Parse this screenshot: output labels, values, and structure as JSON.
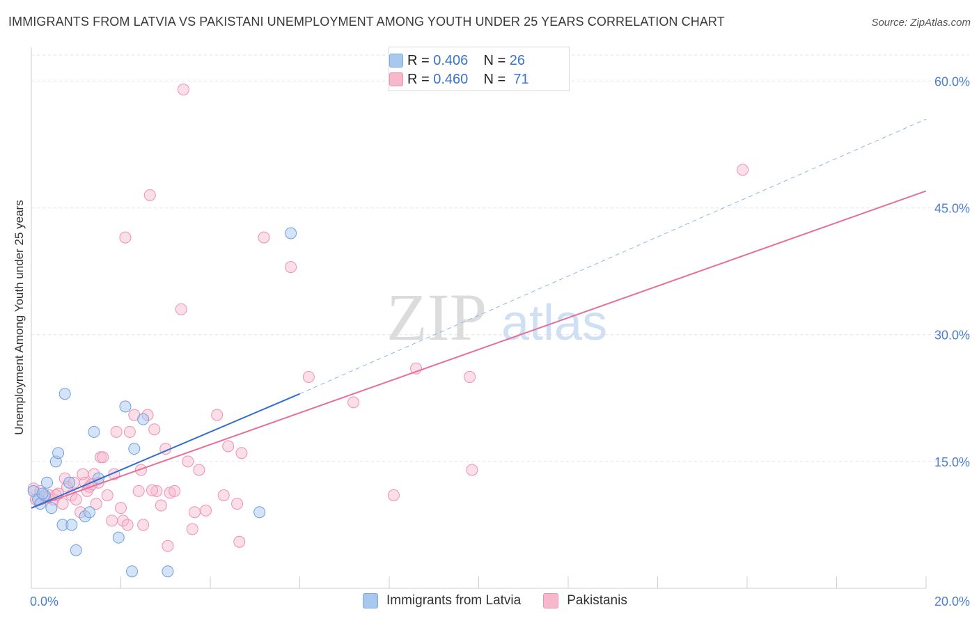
{
  "title": "IMMIGRANTS FROM LATVIA VS PAKISTANI UNEMPLOYMENT AMONG YOUTH UNDER 25 YEARS CORRELATION CHART",
  "source": "Source: ZipAtlas.com",
  "watermark": {
    "zip": "ZIP",
    "atlas": "atlas"
  },
  "legend_top": [
    {
      "r_label": "R =",
      "r_value": "0.406",
      "n_label": "N =",
      "n_value": "26",
      "color": "#a9c8ef"
    },
    {
      "r_label": "R =",
      "r_value": "0.460",
      "n_label": "N =",
      "n_value": "71",
      "color": "#f6b9cc"
    }
  ],
  "chart_data": {
    "type": "scatter",
    "title": "IMMIGRANTS FROM LATVIA VS PAKISTANI UNEMPLOYMENT AMONG YOUTH UNDER 25 YEARS CORRELATION CHART",
    "xlabel": "",
    "ylabel": "Unemployment Among Youth under 25 years",
    "xlim": [
      0,
      20
    ],
    "ylim": [
      0,
      63
    ],
    "x_tick_labels": [
      "0.0%",
      "20.0%"
    ],
    "y_ticks": [
      15,
      30,
      45,
      60
    ],
    "y_tick_labels": [
      "15.0%",
      "30.0%",
      "45.0%",
      "60.0%"
    ],
    "grid": true,
    "legend_position": "bottom",
    "series": [
      {
        "name": "Immigrants from Latvia",
        "color": "#7aaae6",
        "line_color": "#2f6fd1",
        "points": [
          [
            0.05,
            11.5
          ],
          [
            0.15,
            10.5
          ],
          [
            0.2,
            10.0
          ],
          [
            0.3,
            11.0
          ],
          [
            0.35,
            12.5
          ],
          [
            0.45,
            9.5
          ],
          [
            0.55,
            15.0
          ],
          [
            0.6,
            16.0
          ],
          [
            0.7,
            7.5
          ],
          [
            0.75,
            23.0
          ],
          [
            0.85,
            12.5
          ],
          [
            0.9,
            7.5
          ],
          [
            1.0,
            4.5
          ],
          [
            1.2,
            8.5
          ],
          [
            1.3,
            9.0
          ],
          [
            1.4,
            18.5
          ],
          [
            1.5,
            13.0
          ],
          [
            1.95,
            6.0
          ],
          [
            2.1,
            21.5
          ],
          [
            2.25,
            2.0
          ],
          [
            2.3,
            16.5
          ],
          [
            2.5,
            20.0
          ],
          [
            3.05,
            2.0
          ],
          [
            5.1,
            9.0
          ],
          [
            5.8,
            42.0
          ],
          [
            0.25,
            11.2
          ]
        ],
        "trend": {
          "x0": 0,
          "y0": 9.5,
          "x1": 6.0,
          "y1": 23.0,
          "dashed_to_x": 20.0,
          "dashed_to_y": 55.5
        }
      },
      {
        "name": "Pakistanis",
        "color": "#f4a6bf",
        "line_color": "#e46f9a",
        "points": [
          [
            0.05,
            11.8
          ],
          [
            0.1,
            10.5
          ],
          [
            0.2,
            11.5
          ],
          [
            0.3,
            10.8
          ],
          [
            0.4,
            11.0
          ],
          [
            0.5,
            10.5
          ],
          [
            0.6,
            11.2
          ],
          [
            0.7,
            10.0
          ],
          [
            0.75,
            13.0
          ],
          [
            0.8,
            12.0
          ],
          [
            0.9,
            11.0
          ],
          [
            0.95,
            12.5
          ],
          [
            1.0,
            10.5
          ],
          [
            1.1,
            9.0
          ],
          [
            1.15,
            13.5
          ],
          [
            1.2,
            12.5
          ],
          [
            1.25,
            11.5
          ],
          [
            1.3,
            12.0
          ],
          [
            1.4,
            13.5
          ],
          [
            1.45,
            10.0
          ],
          [
            1.5,
            12.5
          ],
          [
            1.55,
            15.5
          ],
          [
            1.6,
            15.5
          ],
          [
            1.7,
            11.0
          ],
          [
            1.8,
            8.0
          ],
          [
            1.85,
            13.5
          ],
          [
            1.9,
            18.5
          ],
          [
            2.0,
            9.5
          ],
          [
            2.05,
            8.0
          ],
          [
            2.1,
            41.5
          ],
          [
            2.15,
            7.5
          ],
          [
            2.2,
            18.5
          ],
          [
            2.3,
            20.5
          ],
          [
            2.4,
            11.5
          ],
          [
            2.45,
            14.0
          ],
          [
            2.5,
            7.5
          ],
          [
            2.6,
            20.5
          ],
          [
            2.65,
            46.5
          ],
          [
            2.75,
            18.8
          ],
          [
            2.8,
            11.5
          ],
          [
            2.9,
            9.8
          ],
          [
            3.0,
            16.5
          ],
          [
            3.05,
            5.0
          ],
          [
            3.1,
            11.3
          ],
          [
            3.2,
            11.5
          ],
          [
            3.35,
            33.0
          ],
          [
            3.4,
            59.0
          ],
          [
            3.5,
            15.0
          ],
          [
            3.6,
            7.0
          ],
          [
            3.65,
            9.0
          ],
          [
            3.75,
            14.0
          ],
          [
            3.9,
            9.2
          ],
          [
            4.15,
            20.5
          ],
          [
            4.3,
            11.0
          ],
          [
            4.4,
            16.8
          ],
          [
            4.6,
            10.0
          ],
          [
            4.65,
            5.5
          ],
          [
            4.7,
            16.0
          ],
          [
            5.2,
            41.5
          ],
          [
            5.8,
            38.0
          ],
          [
            6.2,
            25.0
          ],
          [
            7.2,
            22.0
          ],
          [
            8.1,
            11.0
          ],
          [
            8.6,
            26.0
          ],
          [
            9.8,
            25.0
          ],
          [
            9.85,
            14.0
          ],
          [
            15.9,
            49.5
          ],
          [
            0.15,
            10.5
          ],
          [
            0.55,
            11.0
          ],
          [
            1.35,
            12.3
          ],
          [
            2.7,
            11.6
          ]
        ],
        "trend": {
          "x0": 0,
          "y0": 9.5,
          "x1": 20.0,
          "y1": 47.0
        }
      }
    ]
  },
  "bottom_legend": [
    {
      "label": "Immigrants from Latvia",
      "color": "#a9c8ef",
      "border": "#7aaae6"
    },
    {
      "label": "Pakistanis",
      "color": "#f6b9cc",
      "border": "#f08fb0"
    }
  ]
}
